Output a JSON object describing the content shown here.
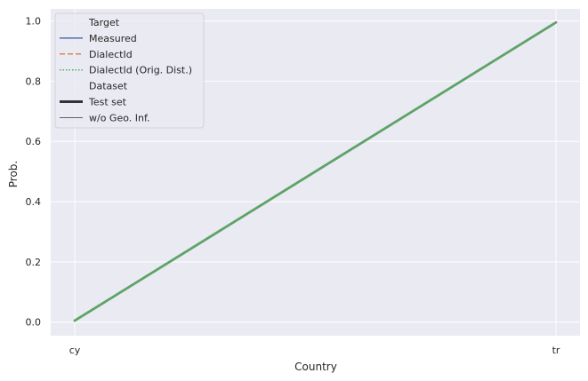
{
  "chart_data": {
    "type": "line",
    "xlabel": "Country",
    "ylabel": "Prob.",
    "categories": [
      "cy",
      "tr"
    ],
    "yticks": [
      "0.0",
      "0.2",
      "0.4",
      "0.6",
      "0.8",
      "1.0"
    ],
    "ylim": [
      -0.045,
      1.04
    ],
    "grid": true,
    "background": "#eaeaf2",
    "legend_position": "top-left",
    "legend": [
      {
        "label": "Target",
        "kind": "header"
      },
      {
        "label": "Measured",
        "kind": "series",
        "color": "#4c72b0",
        "dash": "solid"
      },
      {
        "label": "DialectId",
        "kind": "series",
        "color": "#dd8452",
        "dash": "dashed"
      },
      {
        "label": "DialectId (Orig. Dist.)",
        "kind": "series",
        "color": "#55a868",
        "dash": "dotted"
      },
      {
        "label": "Dataset",
        "kind": "header"
      },
      {
        "label": "Test set",
        "kind": "style",
        "color": "#333333",
        "width": "thick"
      },
      {
        "label": "w/o Geo. Inf.",
        "kind": "style",
        "color": "#333333",
        "width": "thin"
      }
    ],
    "series": [
      {
        "name": "Measured",
        "dataset": "Test set",
        "color": "#4c72b0",
        "dash": "solid",
        "values": [
          0.005,
          0.995
        ]
      },
      {
        "name": "DialectId",
        "dataset": "Test set",
        "color": "#dd8452",
        "dash": "dashed",
        "values": [
          0.005,
          0.995
        ]
      },
      {
        "name": "DialectId (Orig. Dist.)",
        "dataset": "Test set",
        "color": "#55a868",
        "dash": "dotted",
        "values": [
          0.005,
          0.995
        ]
      }
    ]
  }
}
